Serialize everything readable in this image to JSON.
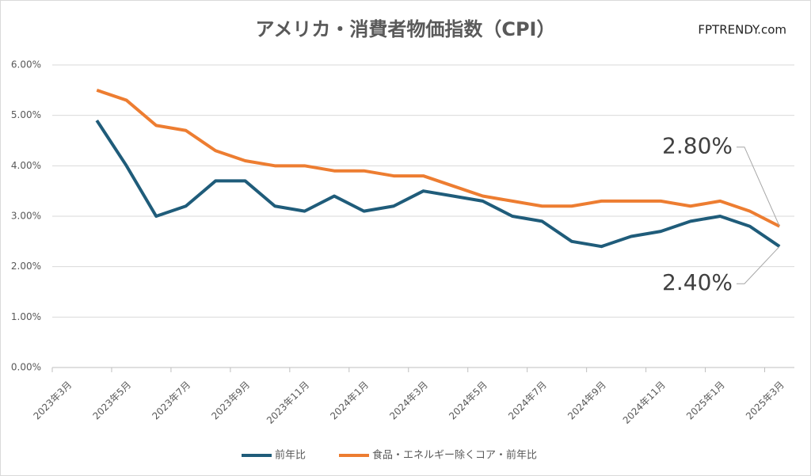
{
  "chart_data": {
    "type": "line",
    "title": "アメリカ・消費者物価指数（CPI）",
    "watermark": "FPTRENDY.com",
    "categories": [
      "2023年3月",
      null,
      "2023年5月",
      null,
      "2023年7月",
      null,
      "2023年9月",
      null,
      "2023年11月",
      null,
      "2024年1月",
      null,
      "2024年3月",
      null,
      "2024年5月",
      null,
      "2024年7月",
      null,
      "2024年9月",
      null,
      "2024年11月",
      null,
      "2025年1月",
      null,
      "2025年3月"
    ],
    "series": [
      {
        "name": "前年比",
        "color": "#1f5c7a",
        "values": [
          null,
          4.9,
          4.0,
          3.0,
          3.2,
          3.7,
          3.7,
          3.2,
          3.1,
          3.4,
          3.1,
          3.2,
          3.5,
          3.4,
          3.3,
          3.0,
          2.9,
          2.5,
          2.4,
          2.6,
          2.7,
          2.9,
          3.0,
          2.8,
          2.4
        ],
        "value_labels": [
          null,
          null,
          null,
          null,
          null,
          null,
          null,
          null,
          null,
          null,
          null,
          null,
          null,
          null,
          null,
          null,
          null,
          null,
          null,
          null,
          null,
          null,
          null,
          null,
          "2.40%"
        ]
      },
      {
        "name": "食品・エネルギー除くコア・前年比",
        "color": "#ed7d31",
        "values": [
          null,
          5.5,
          5.3,
          4.8,
          4.7,
          4.3,
          4.1,
          4.0,
          4.0,
          3.9,
          3.9,
          3.8,
          3.8,
          3.6,
          3.4,
          3.3,
          3.2,
          3.2,
          3.3,
          3.3,
          3.3,
          3.2,
          3.3,
          3.1,
          2.8
        ],
        "value_labels": [
          null,
          null,
          null,
          null,
          null,
          null,
          null,
          null,
          null,
          null,
          null,
          null,
          null,
          null,
          null,
          null,
          null,
          null,
          null,
          null,
          null,
          null,
          null,
          null,
          "2.80%"
        ]
      }
    ],
    "ylim": [
      0,
      6
    ],
    "yticks": [
      {
        "value": 0,
        "label": "0.00%"
      },
      {
        "value": 1,
        "label": "1.00%"
      },
      {
        "value": 2,
        "label": "2.00%"
      },
      {
        "value": 3,
        "label": "3.00%"
      },
      {
        "value": 4,
        "label": "4.00%"
      },
      {
        "value": 5,
        "label": "5.00%"
      },
      {
        "value": 6,
        "label": "6.00%"
      }
    ],
    "grid": true,
    "legend": "bottom"
  }
}
